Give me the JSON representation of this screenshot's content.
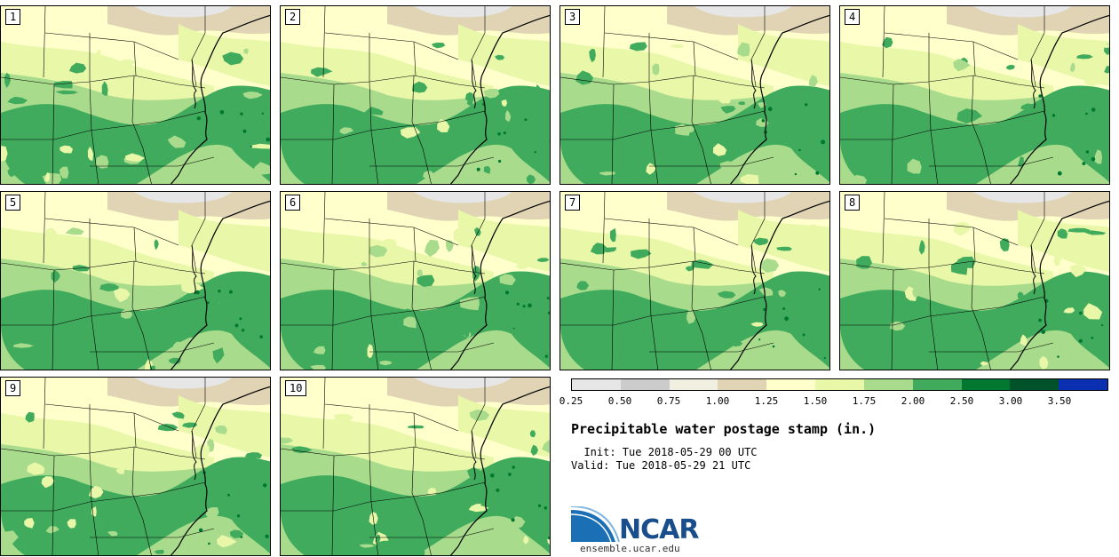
{
  "title": "Precipitable water postage stamp (in.)",
  "init": "  Init: Tue 2018-05-29 00 UTC",
  "valid": "Valid: Tue 2018-05-29 21 UTC",
  "site": "ensemble.ucar.edu",
  "logo_text": "NCAR",
  "members": [
    "1",
    "2",
    "3",
    "4",
    "5",
    "6",
    "7",
    "8",
    "9",
    "10"
  ],
  "colorbar": {
    "ticks": [
      "0.25",
      "0.50",
      "0.75",
      "1.00",
      "1.25",
      "1.50",
      "1.75",
      "2.00",
      "2.50",
      "3.00",
      "3.50"
    ],
    "colors": [
      "#e6e6e6",
      "#cccccc",
      "#f0efe0",
      "#e0d4b4",
      "#ffffcc",
      "#e8f7a8",
      "#a8db8c",
      "#41ab5d",
      "#00782f",
      "#00522a",
      "#0a2fb0"
    ]
  },
  "colors": {
    "land_base": "#ffffcc",
    "dry": "#e6e6e6",
    "tan": "#e0d4b4",
    "light_green": "#e8f7a8",
    "mid_green": "#a8db8c",
    "green": "#41ab5d",
    "dark_green": "#00782f",
    "boundary": "#000000"
  }
}
